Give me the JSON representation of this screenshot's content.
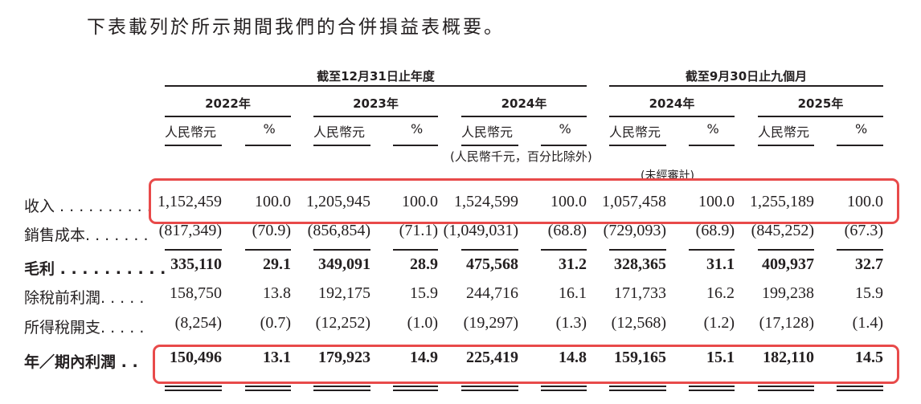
{
  "title": "下表載列於所示期間我們的合併損益表概要。",
  "header": {
    "group_year": "截至12月31日止年度",
    "group_nine_months": "截至9月30日止九個月",
    "years": [
      "2022年",
      "2023年",
      "2024年",
      "2024年",
      "2025年"
    ],
    "amount_label": "人民幣元",
    "percent_label": "%",
    "units_note": "(人民幣千元，百分比除外)",
    "unaudited_note": "(未經審計)"
  },
  "rows": [
    {
      "label": "收入 . . . . . . . . . .",
      "bold": false,
      "highlight": true,
      "values": [
        "1,152,459",
        "100.0",
        "1,205,945",
        "100.0",
        "1,524,599",
        "100.0",
        "1,057,458",
        "100.0",
        "1,255,189",
        "100.0"
      ]
    },
    {
      "label": "銷售成本. . . . . . .",
      "bold": false,
      "highlight": false,
      "underline": true,
      "values": [
        "(817,349)",
        "(70.9)",
        "(856,854)",
        "(71.1)",
        "(1,049,031)",
        "(68.8)",
        "(729,093)",
        "(68.9)",
        "(845,252)",
        "(67.3)"
      ]
    },
    {
      "label": "毛利 . . . . . . . . . .",
      "bold": true,
      "highlight": false,
      "values": [
        "335,110",
        "29.1",
        "349,091",
        "28.9",
        "475,568",
        "31.2",
        "328,365",
        "31.1",
        "409,937",
        "32.7"
      ]
    },
    {
      "label": "除稅前利潤. . . . .",
      "bold": false,
      "highlight": false,
      "values": [
        "158,750",
        "13.8",
        "192,175",
        "15.9",
        "244,716",
        "16.1",
        "171,733",
        "16.2",
        "199,238",
        "15.9"
      ]
    },
    {
      "label": "所得稅開支. . . . .",
      "bold": false,
      "highlight": false,
      "values": [
        "(8,254)",
        "(0.7)",
        "(12,252)",
        "(1.0)",
        "(19,297)",
        "(1.3)",
        "(12,568)",
        "(1.2)",
        "(17,128)",
        "(1.4)"
      ]
    },
    {
      "label": "年／期內利潤 . .",
      "bold": true,
      "highlight": true,
      "double_underline": true,
      "values": [
        "150,496",
        "13.1",
        "179,923",
        "14.9",
        "225,419",
        "14.8",
        "159,165",
        "15.1",
        "182,110",
        "14.5"
      ]
    }
  ],
  "colors": {
    "highlight_box": "#e84a4a",
    "text": "#231f20"
  }
}
